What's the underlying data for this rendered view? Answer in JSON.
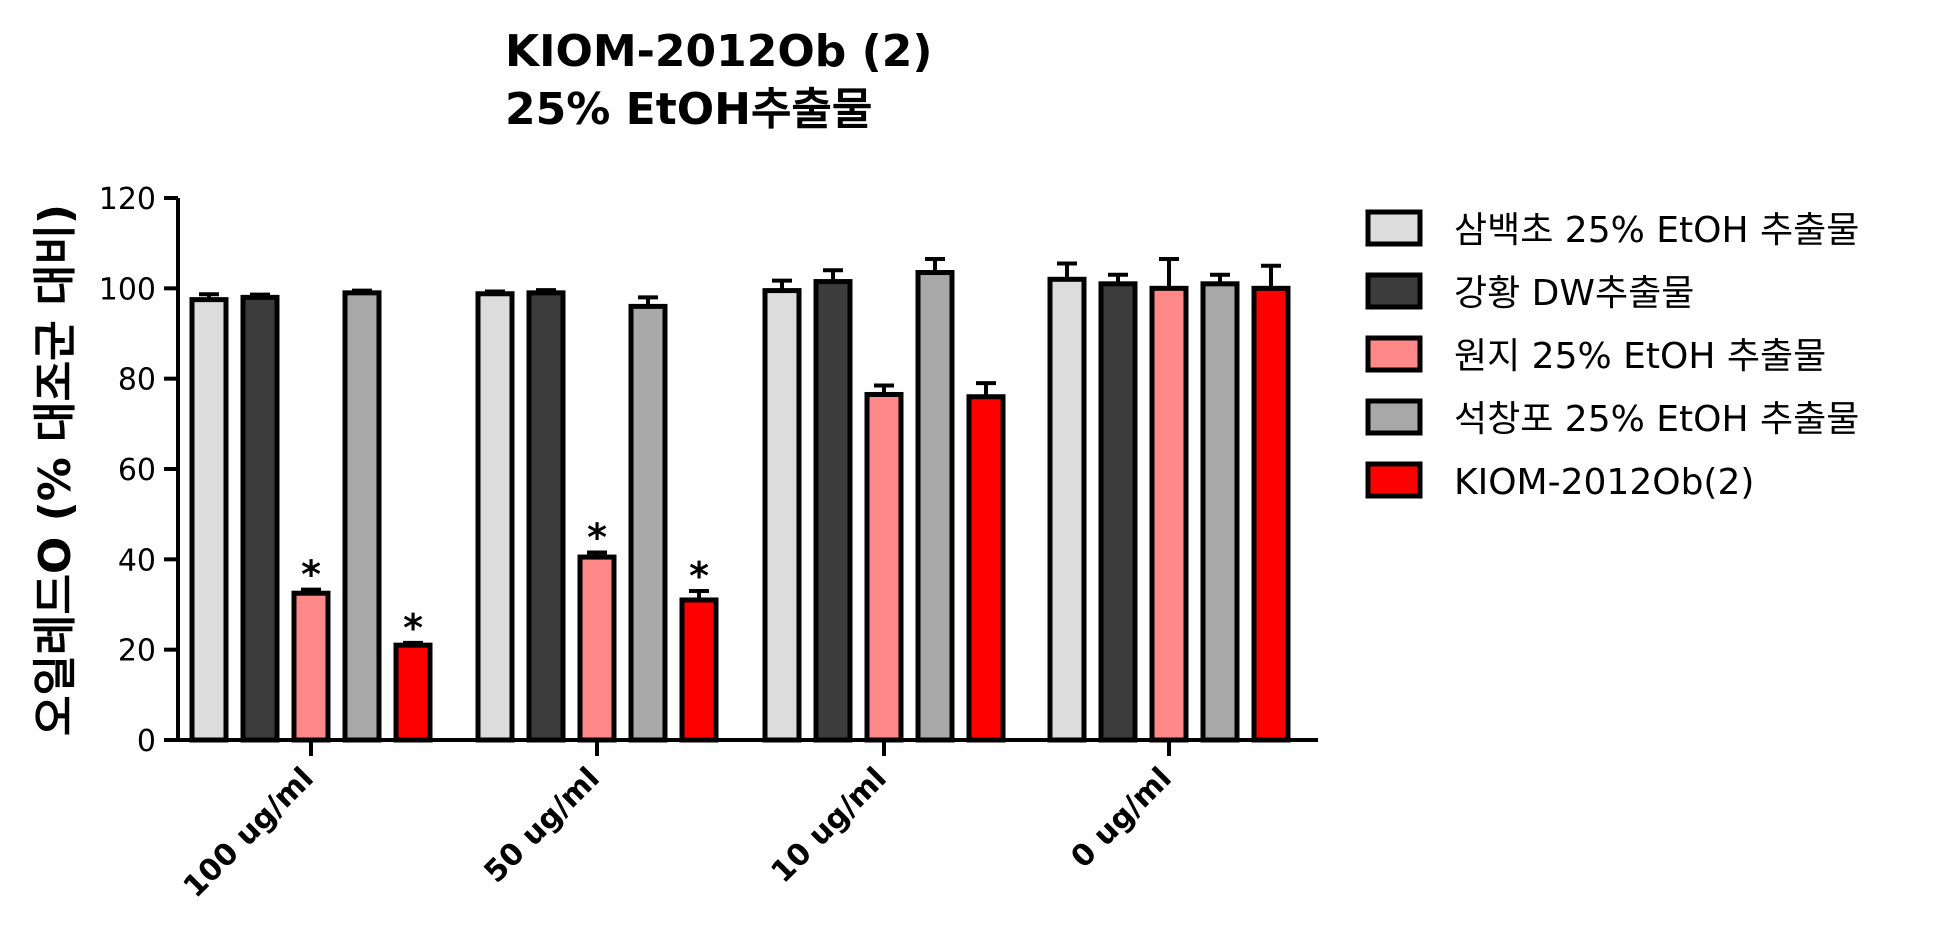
{
  "chart_data": {
    "type": "bar",
    "title": [
      "KIOM-2012Ob (2)",
      "25% EtOH추출물"
    ],
    "ylabel": "오일레드O (% 대조군 대비)",
    "xlabel": "",
    "ylim": [
      0,
      120
    ],
    "yticks": [
      0,
      20,
      40,
      60,
      80,
      100,
      120
    ],
    "categories": [
      "100 ug/ml",
      "50 ug/ml",
      "10 ug/ml",
      "0 ug/ml"
    ],
    "legend_position": "right",
    "grid": false,
    "series": [
      {
        "name": "삼백초 25% EtOH 추출물",
        "color": "#dcdcdc",
        "values": [
          97.5,
          98.8,
          99.5,
          102
        ],
        "errors": [
          1.2,
          0.5,
          2.2,
          3.5
        ]
      },
      {
        "name": "강황 DW추출물",
        "color": "#3c3c3c",
        "values": [
          98,
          99,
          101.5,
          101
        ],
        "errors": [
          0.6,
          0.6,
          2.5,
          2.0
        ]
      },
      {
        "name": "원지 25% EtOH 추출물",
        "color": "#ff8888",
        "values": [
          32.5,
          40.5,
          76.5,
          100
        ],
        "errors": [
          0.8,
          1.0,
          2.0,
          6.5
        ]
      },
      {
        "name": "석창포 25% EtOH 추출물",
        "color": "#a8a8a8",
        "values": [
          99,
          96,
          103.5,
          101
        ],
        "errors": [
          0.5,
          2.0,
          3.0,
          2.0
        ]
      },
      {
        "name": "KIOM-2012Ob(2)",
        "color": "#ff0000",
        "values": [
          21,
          31,
          76,
          100
        ],
        "errors": [
          0.5,
          2.0,
          3.0,
          5.0
        ]
      }
    ],
    "annotations": [
      {
        "text": "*",
        "category": "100 ug/ml",
        "series": "원지 25% EtOH 추출물"
      },
      {
        "text": "*",
        "category": "100 ug/ml",
        "series": "KIOM-2012Ob(2)"
      },
      {
        "text": "*",
        "category": "50 ug/ml",
        "series": "원지 25% EtOH 추출물"
      },
      {
        "text": "*",
        "category": "50 ug/ml",
        "series": "KIOM-2012Ob(2)"
      }
    ]
  }
}
